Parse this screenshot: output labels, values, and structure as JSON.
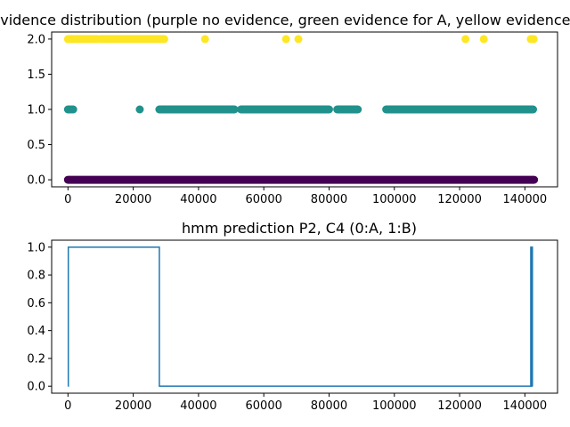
{
  "chart_data": [
    {
      "type": "scatter",
      "title": "Evidence distribution (purple no evidence, green evidence for A, yellow evidence for B)",
      "xlim": [
        -5000,
        150000
      ],
      "ylim": [
        -0.1,
        2.1
      ],
      "xticks": [
        0,
        20000,
        40000,
        60000,
        80000,
        100000,
        120000,
        140000
      ],
      "xtick_labels": [
        "0",
        "20000",
        "40000",
        "60000",
        "80000",
        "100000",
        "120000",
        "140000"
      ],
      "yticks": [
        0.0,
        0.5,
        1.0,
        1.5,
        2.0
      ],
      "ytick_labels": [
        "0.0",
        "0.5",
        "1.0",
        "1.5",
        "2.0"
      ],
      "grid": false,
      "colors": {
        "0": "#440154",
        "1": "#21918c",
        "2": "#fde725"
      },
      "series": [
        {
          "value": 0,
          "segments": [
            [
              0,
              142800
            ]
          ],
          "points": []
        },
        {
          "value": 1,
          "segments": [
            [
              28000,
              51000
            ],
            [
              53000,
              80000
            ],
            [
              82500,
              88800
            ],
            [
              97500,
              142500
            ]
          ],
          "points": [
            0,
            300,
            700,
            1200,
            1600,
            22000,
            28200
          ]
        },
        {
          "value": 2,
          "segments": [
            [
              0,
              9000
            ],
            [
              10000,
              29500
            ]
          ],
          "points": [
            42000,
            66800,
            70600,
            121800,
            127400,
            141800,
            142300,
            142700
          ]
        }
      ]
    },
    {
      "type": "line",
      "title": "hmm prediction P2, C4 (0:A, 1:B)",
      "xlim": [
        -5000,
        150000
      ],
      "ylim": [
        -0.05,
        1.05
      ],
      "xticks": [
        0,
        20000,
        40000,
        60000,
        80000,
        100000,
        120000,
        140000
      ],
      "xtick_labels": [
        "0",
        "20000",
        "40000",
        "60000",
        "80000",
        "100000",
        "120000",
        "140000"
      ],
      "yticks": [
        0.0,
        0.2,
        0.4,
        0.6,
        0.8,
        1.0
      ],
      "ytick_labels": [
        "0.0",
        "0.2",
        "0.4",
        "0.6",
        "0.8",
        "1.0"
      ],
      "grid": false,
      "line_color": "#1f77b4",
      "x": [
        0,
        100,
        100,
        28000,
        28000,
        141800,
        141800,
        141900,
        141900,
        142200,
        142200,
        142300,
        142300
      ],
      "y": [
        0,
        0,
        1,
        1,
        0,
        0,
        1,
        1,
        0,
        0,
        1,
        1,
        0
      ]
    }
  ]
}
